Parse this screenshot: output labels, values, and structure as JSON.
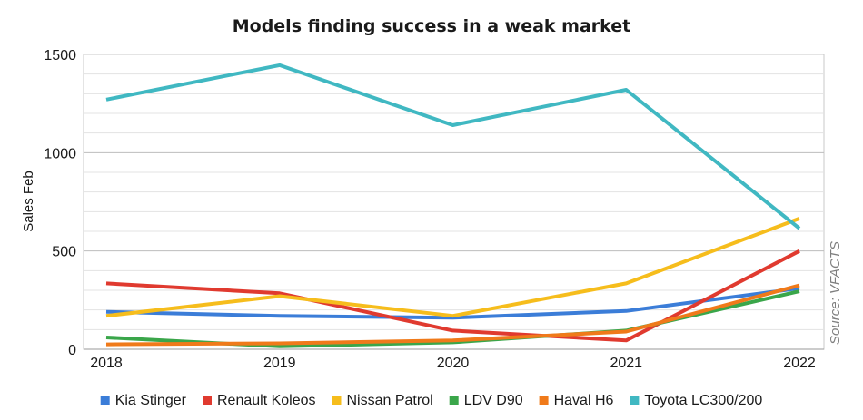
{
  "chart_data": {
    "type": "line",
    "title": "Models finding success in a weak market",
    "ylabel": "Sales Feb",
    "xlabel": "",
    "source": "Source: VFACTS",
    "x": [
      "2018",
      "2019",
      "2020",
      "2021",
      "2022"
    ],
    "ylim": [
      0,
      1500
    ],
    "yticks": [
      "0",
      "500",
      "1000",
      "1500"
    ],
    "grid": "horizontal",
    "legend_position": "bottom",
    "series": [
      {
        "name": "Kia Stinger",
        "color": "#3b7dd8",
        "values": [
          190,
          170,
          160,
          195,
          310
        ]
      },
      {
        "name": "Renault Koleos",
        "color": "#e03a2f",
        "values": [
          335,
          285,
          95,
          45,
          500
        ]
      },
      {
        "name": "Nissan Patrol",
        "color": "#f6bd1c",
        "values": [
          170,
          270,
          170,
          335,
          665
        ]
      },
      {
        "name": "LDV D90",
        "color": "#3aa64a",
        "values": [
          60,
          15,
          35,
          95,
          295
        ]
      },
      {
        "name": "Haval H6",
        "color": "#f07a1a",
        "values": [
          25,
          30,
          45,
          90,
          325
        ]
      },
      {
        "name": "Toyota LC300/200",
        "color": "#40b8c2",
        "values": [
          1270,
          1445,
          1140,
          1320,
          615
        ]
      }
    ]
  }
}
